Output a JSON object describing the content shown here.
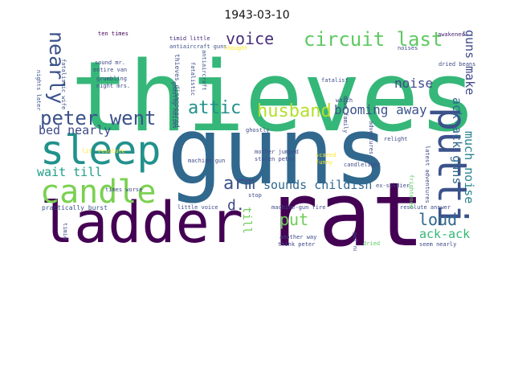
{
  "title": "1943-03-10",
  "chart_data": {
    "type": "wordcloud",
    "title": "1943-03-10",
    "background": "#ffffff",
    "colormap": "viridis",
    "words": [
      {
        "text": "thieves",
        "color": "#35b779"
      },
      {
        "text": "guns",
        "color": "#31688e"
      },
      {
        "text": "rat",
        "color": "#440154"
      },
      {
        "text": "ladder",
        "color": "#440154"
      },
      {
        "text": "sleep",
        "color": "#21918c"
      },
      {
        "text": "candle",
        "color": "#7ad151"
      },
      {
        "text": "putti",
        "color": "#3b528b"
      },
      {
        "text": "peter went",
        "color": "#3b528b"
      },
      {
        "text": "circuit last",
        "color": "#5ec962"
      },
      {
        "text": "voice",
        "color": "#472d7b"
      },
      {
        "text": "attic",
        "color": "#21918c"
      },
      {
        "text": "husband",
        "color": "#b5de2b"
      },
      {
        "text": "nearly",
        "color": "#3b528b"
      },
      {
        "text": "arm",
        "color": "#3b528b"
      },
      {
        "text": "booming away",
        "color": "#3b528b"
      },
      {
        "text": "loud",
        "color": "#31688e"
      },
      {
        "text": "noise",
        "color": "#3e4a89"
      },
      {
        "text": "sounds childish",
        "color": "#31688e"
      },
      {
        "text": "guns make",
        "color": "#3e4a89"
      },
      {
        "text": "ack-ack guns",
        "color": "#31688e"
      },
      {
        "text": "much noise",
        "color": "#26828e"
      },
      {
        "text": "ack-ack",
        "color": "#35b779"
      },
      {
        "text": "bed nearly",
        "color": "#3e4a89"
      },
      {
        "text": "wait till",
        "color": "#1f9e89"
      },
      {
        "text": "put",
        "color": "#6ece58"
      },
      {
        "text": "d.",
        "color": "#3e4a89"
      },
      {
        "text": "till",
        "color": "#6ece58"
      },
      {
        "text": "ten times",
        "color": "#440154"
      },
      {
        "text": "timid little",
        "color": "#472d7b"
      },
      {
        "text": "antiaircraft guns",
        "color": "#3b528b"
      },
      {
        "text": "awakened",
        "color": "#482878"
      },
      {
        "text": "noises",
        "color": "#3e4a89"
      },
      {
        "text": "dried beans",
        "color": "#3e4a89"
      },
      {
        "text": "thieves disappeared",
        "color": "#3b528b"
      },
      {
        "text": "fatalistic",
        "color": "#3e4a89"
      },
      {
        "text": "fatalist",
        "color": "#3b528b"
      },
      {
        "text": "antiaircraft",
        "color": "#3b528b"
      },
      {
        "text": "sound mr.",
        "color": "#3e4a89"
      },
      {
        "text": "entire van",
        "color": "#3e4a89"
      },
      {
        "text": "grumbling",
        "color": "#3e4a89"
      },
      {
        "text": "night mrs.",
        "color": "#3e4a89"
      },
      {
        "text": "fatalistic wife",
        "color": "#3b528b"
      },
      {
        "text": "nights later",
        "color": "#3b528b"
      },
      {
        "text": "ghostly noises",
        "color": "#3e4a89"
      },
      {
        "text": "ghostly",
        "color": "#3e4a89"
      },
      {
        "text": "thought",
        "color": "#fde725"
      },
      {
        "text": "resolute",
        "color": "#fde725"
      },
      {
        "text": "lit",
        "color": "#fde725"
      },
      {
        "text": "times worse",
        "color": "#3e4a89"
      },
      {
        "text": "practically burst",
        "color": "#3b528b"
      },
      {
        "text": "little voice",
        "color": "#3e4a89"
      },
      {
        "text": "machine-gun",
        "color": "#3e4a89"
      },
      {
        "text": "machine-gun fire",
        "color": "#3e4a89"
      },
      {
        "text": "another way",
        "color": "#3e4a89"
      },
      {
        "text": "think peter",
        "color": "#3e4a89"
      },
      {
        "text": "resolute answer",
        "color": "#3e4a89"
      },
      {
        "text": "seem nearly",
        "color": "#3e4a89"
      },
      {
        "text": "candlelight",
        "color": "#3e4a89"
      },
      {
        "text": "relight",
        "color": "#3e4a89"
      },
      {
        "text": "ex-soldier",
        "color": "#3e4a89"
      },
      {
        "text": "pet name",
        "color": "#3e4a89"
      },
      {
        "text": "dried",
        "color": "#5ec962"
      },
      {
        "text": "stop",
        "color": "#3e4a89"
      },
      {
        "text": "scared",
        "color": "#fde725"
      },
      {
        "text": "funny",
        "color": "#fde725"
      },
      {
        "text": "mother jumped",
        "color": "#3e4a89"
      },
      {
        "text": "stolen peter",
        "color": "#3e4a89"
      },
      {
        "text": "latest adventures",
        "color": "#3e4a89"
      },
      {
        "text": "adventures",
        "color": "#3e4a89"
      },
      {
        "text": "frightened",
        "color": "#5ec962"
      },
      {
        "text": "timid",
        "color": "#3e4a89"
      },
      {
        "text": "down family",
        "color": "#3e4a89"
      },
      {
        "text": "which",
        "color": "#3e4a89"
      }
    ]
  }
}
